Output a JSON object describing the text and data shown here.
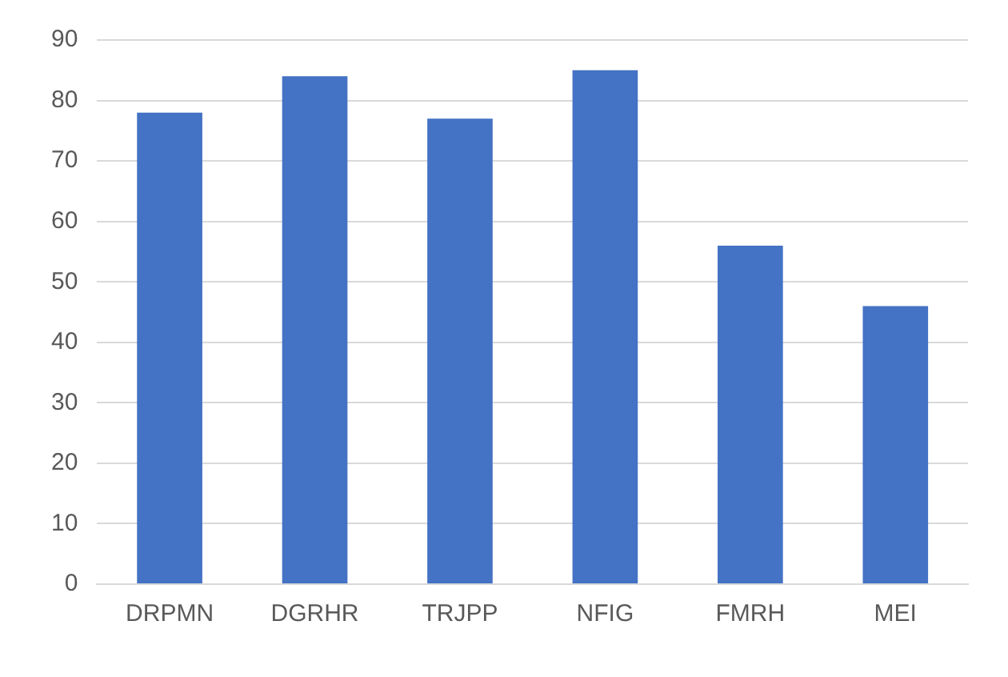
{
  "chart_data": {
    "type": "bar",
    "categories": [
      "DRPMN",
      "DGRHR",
      "TRJPP",
      "NFIG",
      "FMRH",
      "MEI"
    ],
    "values": [
      78,
      84,
      77,
      85,
      56,
      46
    ],
    "color": "#4472c4",
    "ylim": [
      0,
      90
    ],
    "yticks": [
      0,
      10,
      20,
      30,
      40,
      50,
      60,
      70,
      80,
      90
    ],
    "grid": "y"
  }
}
